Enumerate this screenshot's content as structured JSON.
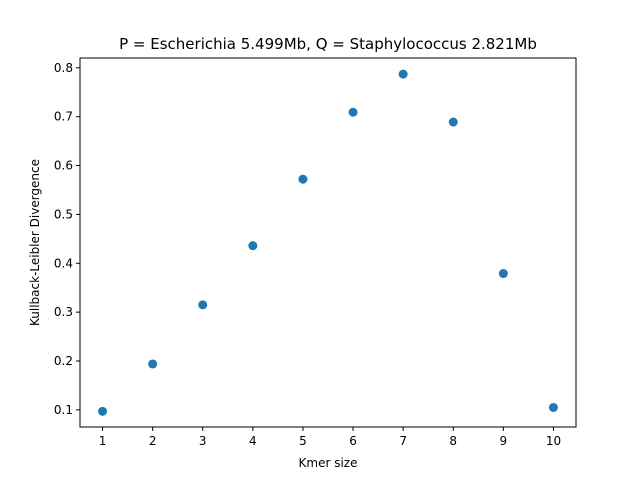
{
  "chart_data": {
    "type": "scatter",
    "title": "P = Escherichia 5.499Mb, Q = Staphylococcus 2.821Mb",
    "xlabel": "Kmer size",
    "ylabel": "Kullback-Leibler Divergence",
    "xlim": [
      0.55,
      10.45
    ],
    "ylim": [
      0.065,
      0.82
    ],
    "xticks": [
      1,
      2,
      3,
      4,
      5,
      6,
      7,
      8,
      9,
      10
    ],
    "xtick_labels": [
      "1",
      "2",
      "3",
      "4",
      "5",
      "6",
      "7",
      "8",
      "9",
      "10"
    ],
    "yticks": [
      0.1,
      0.2,
      0.3,
      0.4,
      0.5,
      0.6,
      0.7,
      0.8
    ],
    "ytick_labels": [
      "0.1",
      "0.2",
      "0.3",
      "0.4",
      "0.5",
      "0.6",
      "0.7",
      "0.8"
    ],
    "grid": false,
    "color": "#1f77b4",
    "series": [
      {
        "x": [
          1,
          2,
          3,
          4,
          5,
          6,
          7,
          8,
          9,
          10
        ],
        "y": [
          0.097,
          0.194,
          0.315,
          0.436,
          0.572,
          0.709,
          0.787,
          0.689,
          0.379,
          0.105
        ]
      }
    ]
  }
}
